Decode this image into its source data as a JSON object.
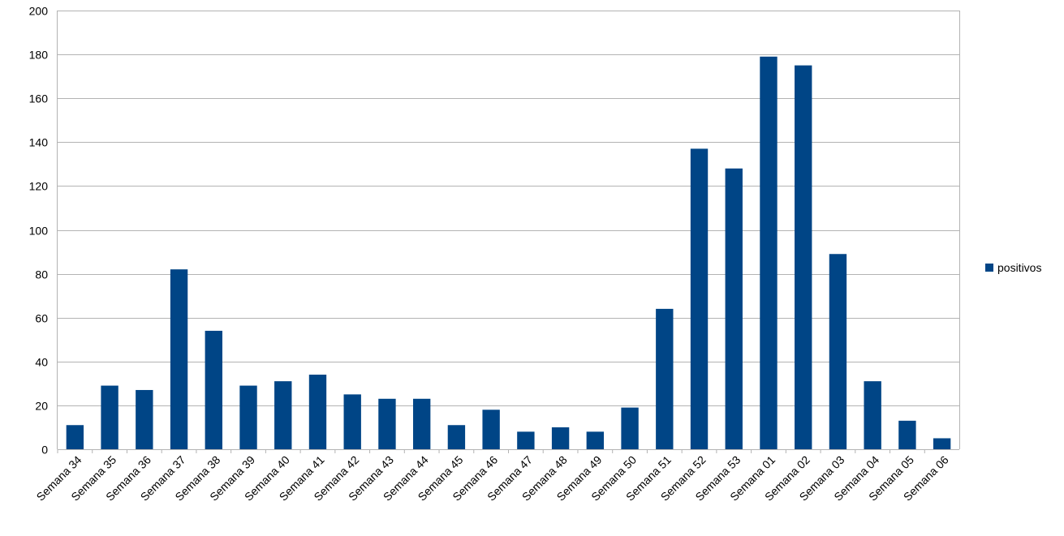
{
  "chart_data": {
    "type": "bar",
    "title": "",
    "xlabel": "",
    "ylabel": "",
    "ylim": [
      0,
      200
    ],
    "yticks": [
      0,
      20,
      40,
      60,
      80,
      100,
      120,
      140,
      160,
      180,
      200
    ],
    "grid": true,
    "legend_position": "right",
    "categories": [
      "Semana 34",
      "Semana 35",
      "Semana 36",
      "Semana 37",
      "Semana 38",
      "Semana 39",
      "Semana 40",
      "Semana 41",
      "Semana 42",
      "Semana 43",
      "Semana 44",
      "Semana 45",
      "Semana 46",
      "Semana 47",
      "Semana 48",
      "Semana 49",
      "Semana 50",
      "Semana 51",
      "Semana 52",
      "Semana 53",
      "Semana 01",
      "Semana 02",
      "Semana 03",
      "Semana 04",
      "Semana 05",
      "Semana 06"
    ],
    "series": [
      {
        "name": "positivos",
        "color": "#004586",
        "values": [
          11,
          29,
          27,
          82,
          54,
          29,
          31,
          34,
          25,
          23,
          23,
          11,
          18,
          8,
          10,
          8,
          19,
          64,
          137,
          128,
          179,
          175,
          89,
          31,
          13,
          5
        ]
      }
    ]
  }
}
